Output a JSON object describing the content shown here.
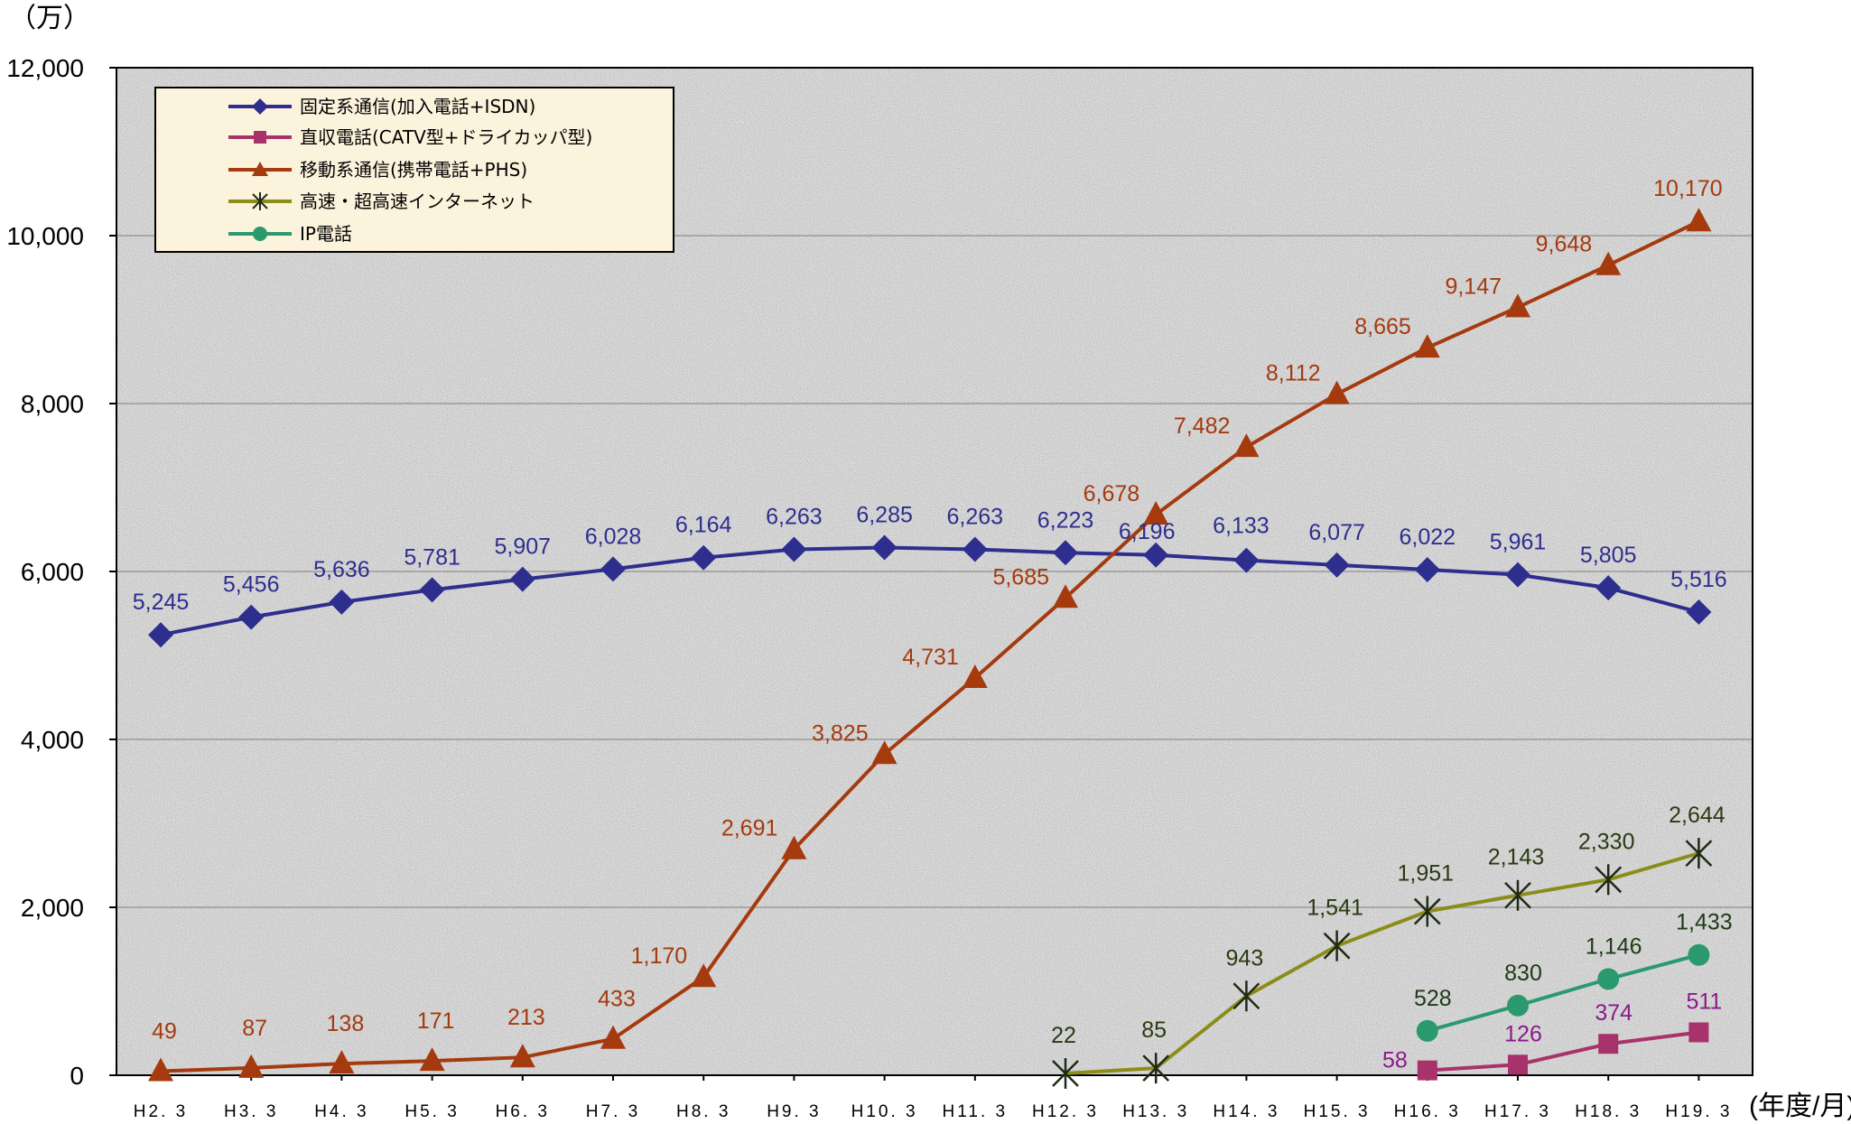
{
  "chart_data": {
    "type": "line",
    "y_unit": "（万）",
    "x_unit": "(年度/月)",
    "categories": [
      "H2.3",
      "H3.3",
      "H4.3",
      "H5.3",
      "H6.3",
      "H7.3",
      "H8.3",
      "H9.3",
      "H10.3",
      "H11.3",
      "H12.3",
      "H13.3",
      "H14.3",
      "H15.3",
      "H16.3",
      "H17.3",
      "H18.3",
      "H19.3"
    ],
    "ylim": [
      0,
      12000
    ],
    "yticks": [
      0,
      2000,
      4000,
      6000,
      8000,
      10000,
      12000
    ],
    "ytick_labels": [
      "0",
      "2,000",
      "4,000",
      "6,000",
      "8,000",
      "10,000",
      "12,000"
    ],
    "grid": true,
    "legend_position": "top-left",
    "series": [
      {
        "name": "固定系通信(加入電話+ISDN)",
        "color": "#2e2e8f",
        "label_color": "#2e2e8f",
        "marker": "diamond",
        "values": [
          5245,
          5456,
          5636,
          5781,
          5907,
          6028,
          6164,
          6263,
          6285,
          6263,
          6223,
          6196,
          6133,
          6077,
          6022,
          5961,
          5805,
          5516
        ],
        "labels": [
          "5,245",
          "5,456",
          "5,636",
          "5,781",
          "5,907",
          "6,028",
          "6,164",
          "6,263",
          "6,285",
          "6,263",
          "6,223",
          "6,196",
          "6,133",
          "6,077",
          "6,022",
          "5,961",
          "5,805",
          "5,516"
        ]
      },
      {
        "name": "直収電話(CATV型+ドライカッパ型)",
        "color": "#a8336b",
        "label_color": "#8b1a8b",
        "marker": "square",
        "values": [
          null,
          null,
          null,
          null,
          null,
          null,
          null,
          null,
          null,
          null,
          null,
          null,
          null,
          null,
          58,
          126,
          374,
          511
        ],
        "labels": [
          null,
          null,
          null,
          null,
          null,
          null,
          null,
          null,
          null,
          null,
          null,
          null,
          null,
          null,
          "58",
          "126",
          "374",
          "511"
        ]
      },
      {
        "name": "移動系通信(携帯電話+PHS)",
        "color": "#a53a0e",
        "label_color": "#a53a0e",
        "marker": "triangle",
        "values": [
          49,
          87,
          138,
          171,
          213,
          433,
          1170,
          2691,
          3825,
          4731,
          5685,
          6678,
          7482,
          8112,
          8665,
          9147,
          9648,
          10170
        ],
        "labels": [
          "49",
          "87",
          "138",
          "171",
          "213",
          "433",
          "1,170",
          "2,691",
          "3,825",
          "4,731",
          "5,685",
          "6,678",
          "7,482",
          "8,112",
          "8,665",
          "9,147",
          "9,648",
          "10,170"
        ]
      },
      {
        "name": "高速・超高速インターネット",
        "color": "#8c8c1a",
        "label_color": "#2b3a12",
        "marker": "asterisk",
        "values": [
          null,
          null,
          null,
          null,
          null,
          null,
          null,
          null,
          null,
          null,
          22,
          85,
          943,
          1541,
          1951,
          2143,
          2330,
          2644
        ],
        "labels": [
          null,
          null,
          null,
          null,
          null,
          null,
          null,
          null,
          null,
          null,
          "22",
          "85",
          "943",
          "1,541",
          "1,951",
          "2,143",
          "2,330",
          "2,644"
        ]
      },
      {
        "name": "IP電話",
        "color": "#2a9a6e",
        "label_color": "#1e3a14",
        "marker": "circle",
        "values": [
          null,
          null,
          null,
          null,
          null,
          null,
          null,
          null,
          null,
          null,
          null,
          null,
          null,
          null,
          528,
          830,
          1146,
          1433
        ],
        "labels": [
          null,
          null,
          null,
          null,
          null,
          null,
          null,
          null,
          null,
          null,
          null,
          null,
          null,
          null,
          "528",
          "830",
          "1,146",
          "1,433"
        ]
      }
    ]
  }
}
